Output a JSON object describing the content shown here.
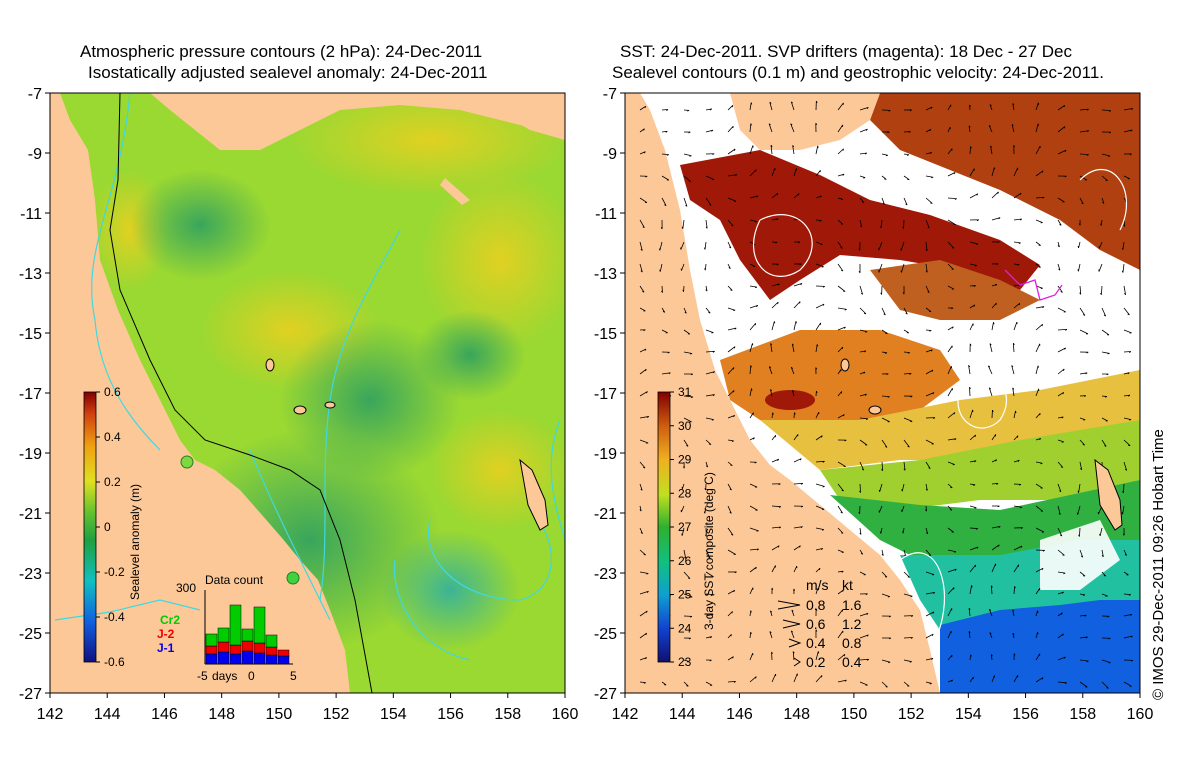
{
  "left_panel": {
    "title_line1": "Atmospheric pressure contours (2 hPa): 24-Dec-2011",
    "title_line2": "Isostatically adjusted sealevel anomaly: 24-Dec-2011",
    "colorbar": {
      "label": "Sealevel anomaly (m)",
      "ticks": [
        "0.6",
        "0.4",
        "0.2",
        "0",
        "-0.2",
        "-0.4",
        "-0.6"
      ],
      "range": [
        -0.6,
        0.6
      ]
    },
    "inset": {
      "title": "Data count",
      "y_max_label": "300",
      "x_label": "days",
      "x_ticks": [
        "-5",
        "0",
        "5"
      ],
      "legend": [
        {
          "name": "Cr2",
          "color": "#00cc00"
        },
        {
          "name": "J-2",
          "color": "#ee0000"
        },
        {
          "name": "J-1",
          "color": "#0000ee"
        }
      ]
    }
  },
  "right_panel": {
    "title_line1": "SST: 24-Dec-2011. SVP drifters (magenta): 18 Dec - 27 Dec",
    "title_line2": "Sealevel contours (0.1 m) and geostrophic velocity: 24-Dec-2011.",
    "colorbar": {
      "label": "3-day SST composite (deg C)",
      "ticks": [
        "31",
        "30",
        "29",
        "28",
        "27",
        "26",
        "25",
        "24",
        "23"
      ],
      "range": [
        23,
        31
      ]
    },
    "velocity_key": {
      "header_ms": "m/s",
      "header_kt": "kt",
      "rows": [
        {
          "ms": "0.8",
          "kt": "1.6"
        },
        {
          "ms": "0.6",
          "kt": "1.2"
        },
        {
          "ms": "0.4",
          "kt": "0.8"
        },
        {
          "ms": "0.2",
          "kt": "0.4"
        }
      ]
    }
  },
  "axes": {
    "x_ticks": [
      "142",
      "144",
      "146",
      "148",
      "150",
      "152",
      "154",
      "156",
      "158",
      "160"
    ],
    "y_ticks": [
      "-7",
      "-9",
      "-11",
      "-13",
      "-15",
      "-17",
      "-19",
      "-21",
      "-23",
      "-25",
      "-27"
    ],
    "lon_range": [
      142,
      160
    ],
    "lat_range": [
      -27,
      -7
    ]
  },
  "credit": "© IMOS 29-Dec-2011 09:26 Hobart Time",
  "colors": {
    "land": "#fcc898",
    "contour": "#40d8e0",
    "drifter": "#e020e0"
  }
}
